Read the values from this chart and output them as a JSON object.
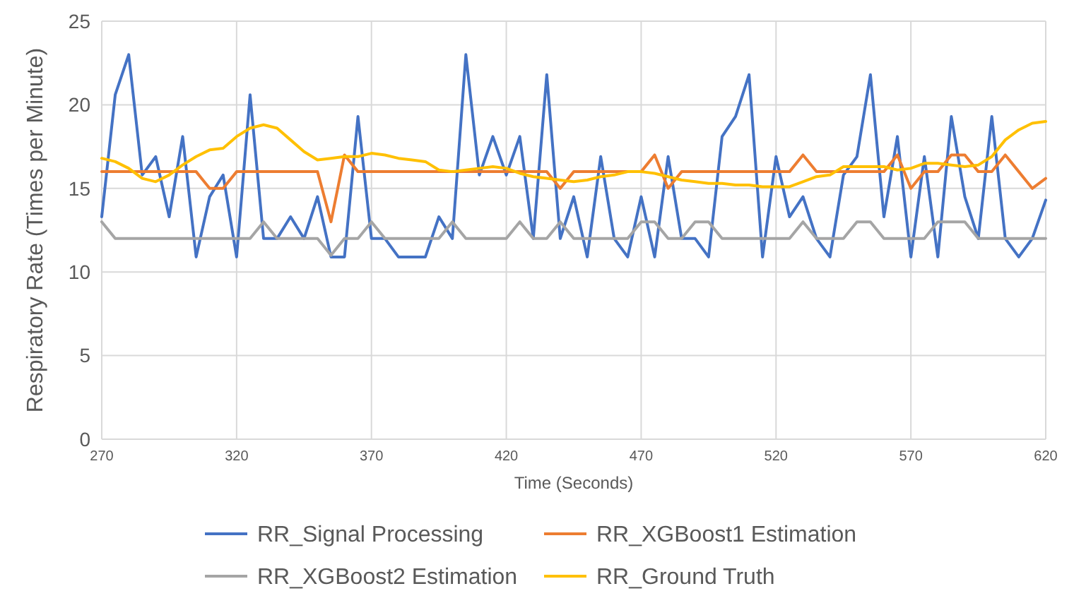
{
  "chart_data": {
    "type": "line",
    "xlabel": "Time (Seconds)",
    "ylabel": "Respiratory Rate (Times per Minute)",
    "x": [
      270,
      275,
      280,
      285,
      290,
      295,
      300,
      305,
      310,
      315,
      320,
      325,
      330,
      335,
      340,
      345,
      350,
      355,
      360,
      365,
      370,
      375,
      380,
      385,
      390,
      395,
      400,
      405,
      410,
      415,
      420,
      425,
      430,
      435,
      440,
      445,
      450,
      455,
      460,
      465,
      470,
      475,
      480,
      485,
      490,
      495,
      500,
      505,
      510,
      515,
      520,
      525,
      530,
      535,
      540,
      545,
      550,
      555,
      560,
      565,
      570,
      575,
      580,
      585,
      590,
      595,
      600,
      605,
      610,
      615,
      620
    ],
    "xlim": [
      270,
      620
    ],
    "xticks": [
      270,
      320,
      370,
      420,
      470,
      520,
      570,
      620
    ],
    "ylim": [
      0,
      25
    ],
    "yticks": [
      0,
      5,
      10,
      15,
      20,
      25
    ],
    "grid": true,
    "legend": "bottom",
    "marker": "none",
    "line_style": "solid",
    "series": [
      {
        "name": "RR_Signal Processing",
        "color": "#4472c4",
        "values": [
          13.3,
          20.6,
          23,
          15.8,
          16.9,
          13.3,
          18.1,
          10.9,
          14.5,
          15.8,
          10.9,
          20.6,
          12,
          12,
          13.3,
          12,
          14.5,
          10.9,
          10.9,
          19.3,
          12,
          12,
          10.9,
          10.9,
          10.9,
          13.3,
          12,
          23,
          15.8,
          18.1,
          15.8,
          18.1,
          12,
          21.8,
          12,
          14.5,
          10.9,
          16.9,
          12,
          10.9,
          14.5,
          10.9,
          16.9,
          12,
          12,
          10.9,
          18.1,
          19.3,
          21.8,
          10.9,
          16.9,
          13.3,
          14.5,
          12,
          10.9,
          15.8,
          16.9,
          21.8,
          13.3,
          18.1,
          10.9,
          16.9,
          10.9,
          19.3,
          14.5,
          12,
          19.3,
          12,
          10.9,
          12,
          14.3
        ]
      },
      {
        "name": "RR_XGBoost1 Estimation",
        "color": "#ed7d31",
        "values": [
          16,
          16,
          16,
          16,
          16,
          16,
          16,
          16,
          15,
          15,
          16,
          16,
          16,
          16,
          16,
          16,
          16,
          13,
          17,
          16,
          16,
          16,
          16,
          16,
          16,
          16,
          16,
          16,
          16,
          16,
          16,
          16,
          16,
          16,
          15,
          16,
          16,
          16,
          16,
          16,
          16,
          17,
          15,
          16,
          16,
          16,
          16,
          16,
          16,
          16,
          16,
          16,
          17,
          16,
          16,
          16,
          16,
          16,
          16,
          17,
          15,
          16,
          16,
          17,
          17,
          16,
          16,
          17,
          16,
          15,
          15.6
        ]
      },
      {
        "name": "RR_XGBoost2 Estimation",
        "color": "#a5a5a5",
        "values": [
          13,
          12,
          12,
          12,
          12,
          12,
          12,
          12,
          12,
          12,
          12,
          12,
          13,
          12,
          12,
          12,
          12,
          11,
          12,
          12,
          13,
          12,
          12,
          12,
          12,
          12,
          13,
          12,
          12,
          12,
          12,
          13,
          12,
          12,
          13,
          12,
          12,
          12,
          12,
          12,
          13,
          13,
          12,
          12,
          13,
          13,
          12,
          12,
          12,
          12,
          12,
          12,
          13,
          12,
          12,
          12,
          13,
          13,
          12,
          12,
          12,
          12,
          13,
          13,
          13,
          12,
          12,
          12,
          12,
          12,
          12
        ]
      },
      {
        "name": "RR_Ground Truth",
        "color": "#ffc000",
        "values": [
          16.8,
          16.6,
          16.2,
          15.6,
          15.4,
          15.8,
          16.4,
          16.9,
          17.3,
          17.4,
          18.1,
          18.6,
          18.8,
          18.6,
          17.9,
          17.2,
          16.7,
          16.8,
          16.9,
          16.9,
          17.1,
          17,
          16.8,
          16.7,
          16.6,
          16.1,
          16,
          16.1,
          16.2,
          16.3,
          16.2,
          15.9,
          15.7,
          15.6,
          15.5,
          15.4,
          15.5,
          15.7,
          15.8,
          16,
          16,
          15.9,
          15.7,
          15.5,
          15.4,
          15.3,
          15.3,
          15.2,
          15.2,
          15.1,
          15.1,
          15.1,
          15.4,
          15.7,
          15.8,
          16.3,
          16.3,
          16.3,
          16.3,
          16.1,
          16.2,
          16.5,
          16.5,
          16.4,
          16.3,
          16.4,
          16.9,
          17.9,
          18.5,
          18.9,
          19
        ]
      }
    ]
  }
}
